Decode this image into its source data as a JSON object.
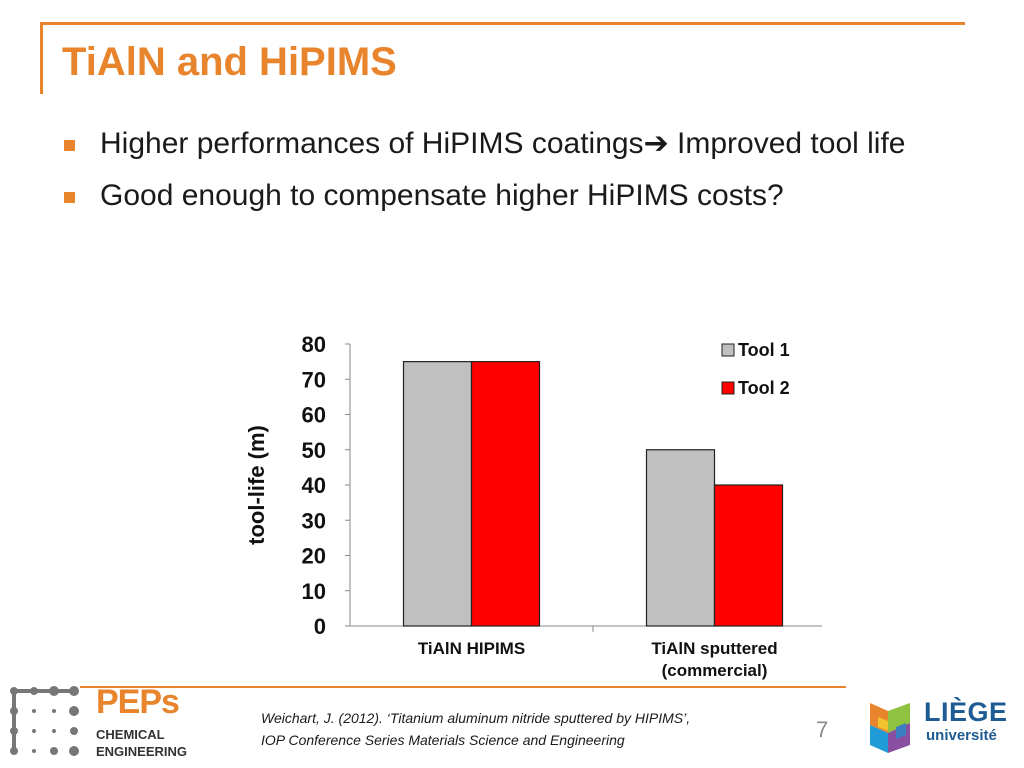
{
  "slide": {
    "title": "TiAlN and HiPIMS",
    "bullets": [
      {
        "before": "Higher performances of HiPIMS coatings",
        "arrow": "➔",
        "after": " Improved tool life"
      },
      {
        "before": "Good enough to compensate higher HiPIMS costs?"
      }
    ],
    "citation_line1": "Weichart, J. (2012). ‘Titanium aluminum nitride sputtered by HIPIMS’,",
    "citation_line2": "IOP Conference Series Materials Science and Engineering",
    "page_number": "7"
  },
  "logos": {
    "peps_name": "PEPs",
    "peps_sub1": "CHEMICAL",
    "peps_sub2": "ENGINEERING",
    "liege_line1": "LIÈGE",
    "liege_line2": "université"
  },
  "chart_data": {
    "type": "bar",
    "categories": [
      "TiAlN HIPIMS",
      "TiAlN sputtered\n(commercial)"
    ],
    "series": [
      {
        "name": "Tool 1",
        "values": [
          75,
          50
        ],
        "color": "#c0c0c0"
      },
      {
        "name": "Tool 2",
        "values": [
          75,
          40
        ],
        "color": "#ff0000"
      }
    ],
    "ylabel": "tool-life (m)",
    "ylim": [
      0,
      80
    ],
    "yticks": [
      0,
      10,
      20,
      30,
      40,
      50,
      60,
      70,
      80
    ],
    "legend_position": "top-right",
    "grid": false
  }
}
